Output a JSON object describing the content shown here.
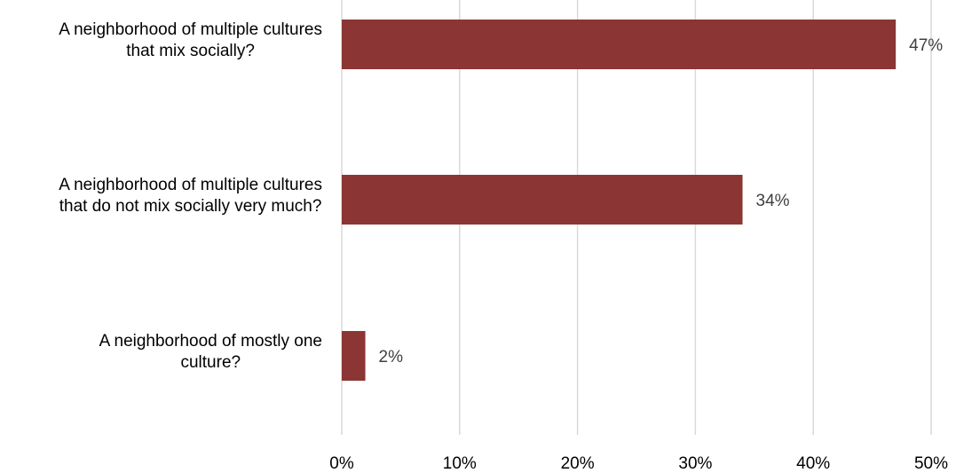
{
  "chart_data": {
    "type": "bar",
    "orientation": "horizontal",
    "categories": [
      [
        "A neighborhood of multiple cultures",
        "that mix socially?"
      ],
      [
        "A neighborhood of multiple cultures",
        "that do not mix socially very much?"
      ],
      [
        "A neighborhood of mostly one",
        "culture?"
      ]
    ],
    "values": [
      47,
      34,
      2
    ],
    "data_labels": [
      "47%",
      "34%",
      "2%"
    ],
    "x_ticks": [
      "0%",
      "10%",
      "20%",
      "30%",
      "40%",
      "50%"
    ],
    "xlim": [
      0,
      50
    ],
    "grid": true,
    "bar_color": "#8b3535",
    "grid_color": "#d9d9d9",
    "title": "",
    "xlabel": "",
    "ylabel": ""
  }
}
